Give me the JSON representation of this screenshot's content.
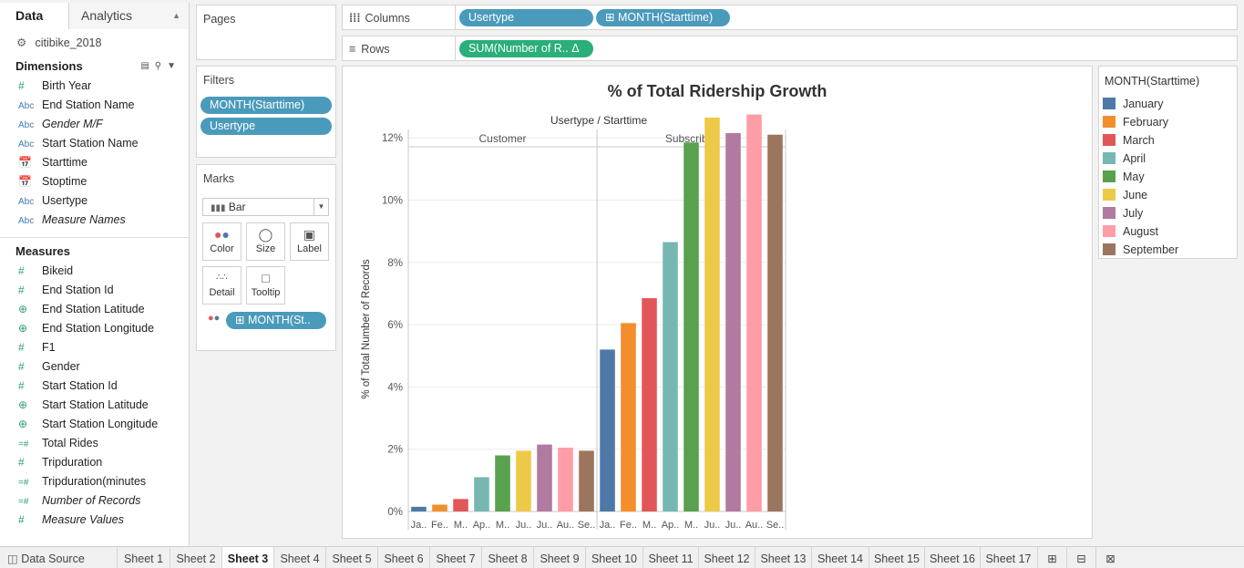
{
  "data_pane": {
    "tab_data": "Data",
    "tab_analytics": "Analytics",
    "datasource": "citibike_2018",
    "dimensions_title": "Dimensions",
    "dimensions": [
      {
        "icon": "#",
        "label": "Birth Year",
        "italic": false
      },
      {
        "icon": "Abc",
        "label": "End Station Name",
        "italic": false
      },
      {
        "icon": "Abc",
        "label": "Gender M/F",
        "italic": true
      },
      {
        "icon": "Abc",
        "label": "Start Station Name",
        "italic": false
      },
      {
        "icon": "date",
        "label": "Starttime",
        "italic": false
      },
      {
        "icon": "date",
        "label": "Stoptime",
        "italic": false
      },
      {
        "icon": "Abc",
        "label": "Usertype",
        "italic": false
      },
      {
        "icon": "Abc",
        "label": "Measure Names",
        "italic": true
      }
    ],
    "measures_title": "Measures",
    "measures": [
      {
        "icon": "#",
        "label": "Bikeid",
        "italic": false
      },
      {
        "icon": "#",
        "label": "End Station Id",
        "italic": false
      },
      {
        "icon": "geo",
        "label": "End Station Latitude",
        "italic": false
      },
      {
        "icon": "geo",
        "label": "End Station Longitude",
        "italic": false
      },
      {
        "icon": "#",
        "label": "F1",
        "italic": false
      },
      {
        "icon": "#",
        "label": "Gender",
        "italic": false
      },
      {
        "icon": "#",
        "label": "Start Station Id",
        "italic": false
      },
      {
        "icon": "geo",
        "label": "Start Station Latitude",
        "italic": false
      },
      {
        "icon": "geo",
        "label": "Start Station Longitude",
        "italic": false
      },
      {
        "icon": "=#",
        "label": "Total Rides",
        "italic": false
      },
      {
        "icon": "#",
        "label": "Tripduration",
        "italic": false
      },
      {
        "icon": "=#",
        "label": "Tripduration(minutes",
        "italic": false
      },
      {
        "icon": "=#",
        "label": "Number of Records",
        "italic": true
      },
      {
        "icon": "#",
        "label": "Measure Values",
        "italic": true
      }
    ]
  },
  "pages": {
    "title": "Pages"
  },
  "filters": {
    "title": "Filters",
    "pills": [
      "MONTH(Starttime)",
      "Usertype"
    ]
  },
  "marks": {
    "title": "Marks",
    "type": "Bar",
    "buttons": [
      "Color",
      "Size",
      "Label",
      "Detail",
      "Tooltip"
    ],
    "color_pill": "MONTH(St.."
  },
  "columns": {
    "label": "Columns",
    "pills": [
      "Usertype",
      "MONTH(Starttime)"
    ]
  },
  "rows": {
    "label": "Rows",
    "pills": [
      "SUM(Number of R..  Δ"
    ]
  },
  "chart_data": {
    "type": "bar",
    "title": "% of Total Ridership Growth",
    "header": "Usertype / Starttime",
    "ylabel": "% of Total Number of Records",
    "ylim": [
      0,
      13
    ],
    "yticks": [
      "0%",
      "2%",
      "4%",
      "6%",
      "8%",
      "10%",
      "12%"
    ],
    "categories": [
      "January",
      "February",
      "March",
      "April",
      "May",
      "June",
      "July",
      "August",
      "September"
    ],
    "tick_labels": [
      "Ja..",
      "Fe..",
      "M..",
      "Ap..",
      "M..",
      "Ju..",
      "Ju..",
      "Au..",
      "Se.."
    ],
    "colors": [
      "#4e79a7",
      "#f28e2b",
      "#e15759",
      "#76b7b2",
      "#59a14f",
      "#edc948",
      "#b07aa1",
      "#ff9da7",
      "#9c755f"
    ],
    "panes": [
      {
        "name": "Customer",
        "values": [
          0.15,
          0.22,
          0.4,
          1.1,
          1.8,
          1.95,
          2.15,
          2.05,
          1.95
        ]
      },
      {
        "name": "Subscriber",
        "values": [
          5.2,
          6.05,
          6.85,
          8.65,
          11.85,
          12.65,
          12.15,
          12.75,
          12.1
        ]
      }
    ]
  },
  "legend": {
    "title": "MONTH(Starttime)",
    "items": [
      {
        "label": "January",
        "color": "#4e79a7"
      },
      {
        "label": "February",
        "color": "#f28e2b"
      },
      {
        "label": "March",
        "color": "#e15759"
      },
      {
        "label": "April",
        "color": "#76b7b2"
      },
      {
        "label": "May",
        "color": "#59a14f"
      },
      {
        "label": "June",
        "color": "#edc948"
      },
      {
        "label": "July",
        "color": "#b07aa1"
      },
      {
        "label": "August",
        "color": "#ff9da7"
      },
      {
        "label": "September",
        "color": "#9c755f"
      }
    ]
  },
  "bottom_tabs": {
    "datasource": "Data Source",
    "sheets": [
      "Sheet 1",
      "Sheet 2",
      "Sheet 3",
      "Sheet 4",
      "Sheet 5",
      "Sheet 6",
      "Sheet 7",
      "Sheet 8",
      "Sheet 9",
      "Sheet 10",
      "Sheet 11",
      "Sheet 12",
      "Sheet 13",
      "Sheet 14",
      "Sheet 15",
      "Sheet 16",
      "Sheet 17"
    ],
    "active": "Sheet 3"
  }
}
